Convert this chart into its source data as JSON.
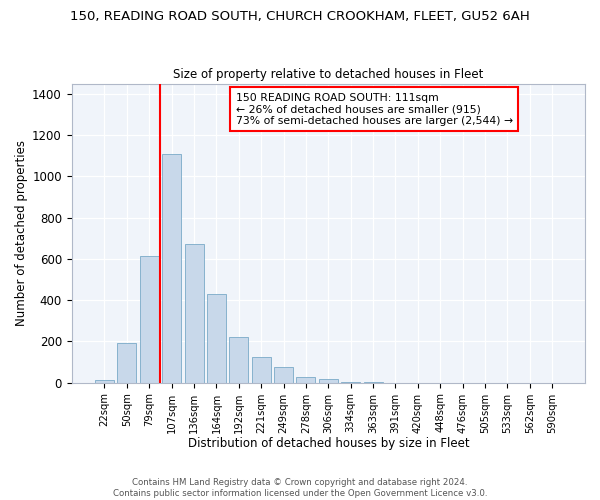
{
  "title": "150, READING ROAD SOUTH, CHURCH CROOKHAM, FLEET, GU52 6AH",
  "subtitle": "Size of property relative to detached houses in Fleet",
  "xlabel": "Distribution of detached houses by size in Fleet",
  "ylabel": "Number of detached properties",
  "bar_color": "#c8d8ea",
  "bar_edge_color": "#7aaac8",
  "categories": [
    "22sqm",
    "50sqm",
    "79sqm",
    "107sqm",
    "136sqm",
    "164sqm",
    "192sqm",
    "221sqm",
    "249sqm",
    "278sqm",
    "306sqm",
    "334sqm",
    "363sqm",
    "391sqm",
    "420sqm",
    "448sqm",
    "476sqm",
    "505sqm",
    "533sqm",
    "562sqm",
    "590sqm"
  ],
  "values": [
    15,
    195,
    615,
    1110,
    670,
    430,
    220,
    125,
    75,
    30,
    20,
    5,
    5,
    0,
    0,
    0,
    0,
    0,
    0,
    0,
    0
  ],
  "ylim": [
    0,
    1450
  ],
  "yticks": [
    0,
    200,
    400,
    600,
    800,
    1000,
    1200,
    1400
  ],
  "annotation_box": {
    "line1": "150 READING ROAD SOUTH: 111sqm",
    "line2": "← 26% of detached houses are smaller (915)",
    "line3": "73% of semi-detached houses are larger (2,544) →"
  },
  "vline_x": 3.0,
  "footer1": "Contains HM Land Registry data © Crown copyright and database right 2024.",
  "footer2": "Contains public sector information licensed under the Open Government Licence v3.0."
}
